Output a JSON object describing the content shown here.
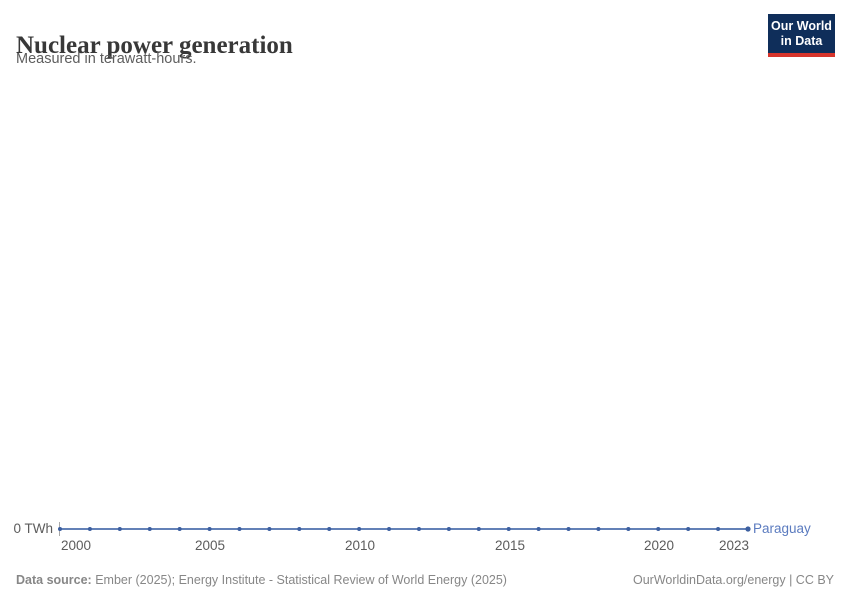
{
  "header": {
    "title": "Nuclear power generation",
    "subtitle": "Measured in terawatt-hours.",
    "logo": {
      "line1": "Our World",
      "line2": "in Data"
    }
  },
  "chart_data": {
    "type": "line",
    "title": "Nuclear power generation",
    "subtitle": "Measured in terawatt-hours.",
    "unit": "TWh",
    "xlim": [
      2000,
      2023
    ],
    "ylim": [
      0,
      0
    ],
    "grid": false,
    "legend_position": "end-of-line",
    "y_zero_label": "0 TWh",
    "x_ticks": [
      2000,
      2005,
      2010,
      2015,
      2020,
      2023
    ],
    "x_tick_labels": [
      "2000",
      "2005",
      "2010",
      "2015",
      "2020",
      "2023"
    ],
    "series": [
      {
        "name": "Paraguay",
        "color": "#4d6fad",
        "marker_color": "#3c5fa0",
        "x": [
          2000,
          2001,
          2002,
          2003,
          2004,
          2005,
          2006,
          2007,
          2008,
          2009,
          2010,
          2011,
          2012,
          2013,
          2014,
          2015,
          2016,
          2017,
          2018,
          2019,
          2020,
          2021,
          2022,
          2023
        ],
        "values": [
          0,
          0,
          0,
          0,
          0,
          0,
          0,
          0,
          0,
          0,
          0,
          0,
          0,
          0,
          0,
          0,
          0,
          0,
          0,
          0,
          0,
          0,
          0,
          0
        ]
      }
    ]
  },
  "footer": {
    "source_label": "Data source:",
    "source_text": " Ember (2025); Energy Institute - Statistical Review of World Energy (2025)",
    "credit": "OurWorldinData.org/energy | CC BY"
  },
  "colors": {
    "title": "#383838",
    "subtitle": "#5d5d5d",
    "axis_text": "#5c5c5c",
    "line": "#4d6fad",
    "logo_bg": "#0f2e5a",
    "logo_accent": "#d7352c"
  }
}
